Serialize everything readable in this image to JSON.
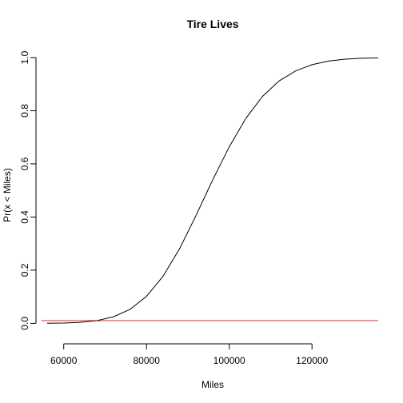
{
  "chart_data": {
    "type": "line",
    "title": "Tire Lives",
    "xlabel": "Miles",
    "ylabel": "Pr(x < Miles)",
    "xlim": [
      56000,
      136000
    ],
    "ylim": [
      0,
      1
    ],
    "grid": false,
    "x_ticks": [
      "60000",
      "80000",
      "100000",
      "120000"
    ],
    "y_ticks": [
      "0.0",
      "0.2",
      "0.4",
      "0.6",
      "0.8",
      "1.0"
    ],
    "series": [
      {
        "color": "#000000",
        "x": [
          56000,
          60000,
          64000,
          68000,
          72000,
          76000,
          80000,
          84000,
          88000,
          92000,
          96000,
          100000,
          104000,
          108000,
          112000,
          116000,
          120000,
          124000,
          128000,
          132000,
          136000
        ],
        "y": [
          0.0004,
          0.0013,
          0.0039,
          0.0103,
          0.0245,
          0.0525,
          0.1013,
          0.1771,
          0.281,
          0.4068,
          0.5398,
          0.6643,
          0.7708,
          0.8534,
          0.9115,
          0.9495,
          0.9733,
          0.9867,
          0.9938,
          0.9973,
          0.9989
        ]
      }
    ],
    "reference_line": {
      "y": 0.01,
      "color": "#cc3333"
    }
  }
}
